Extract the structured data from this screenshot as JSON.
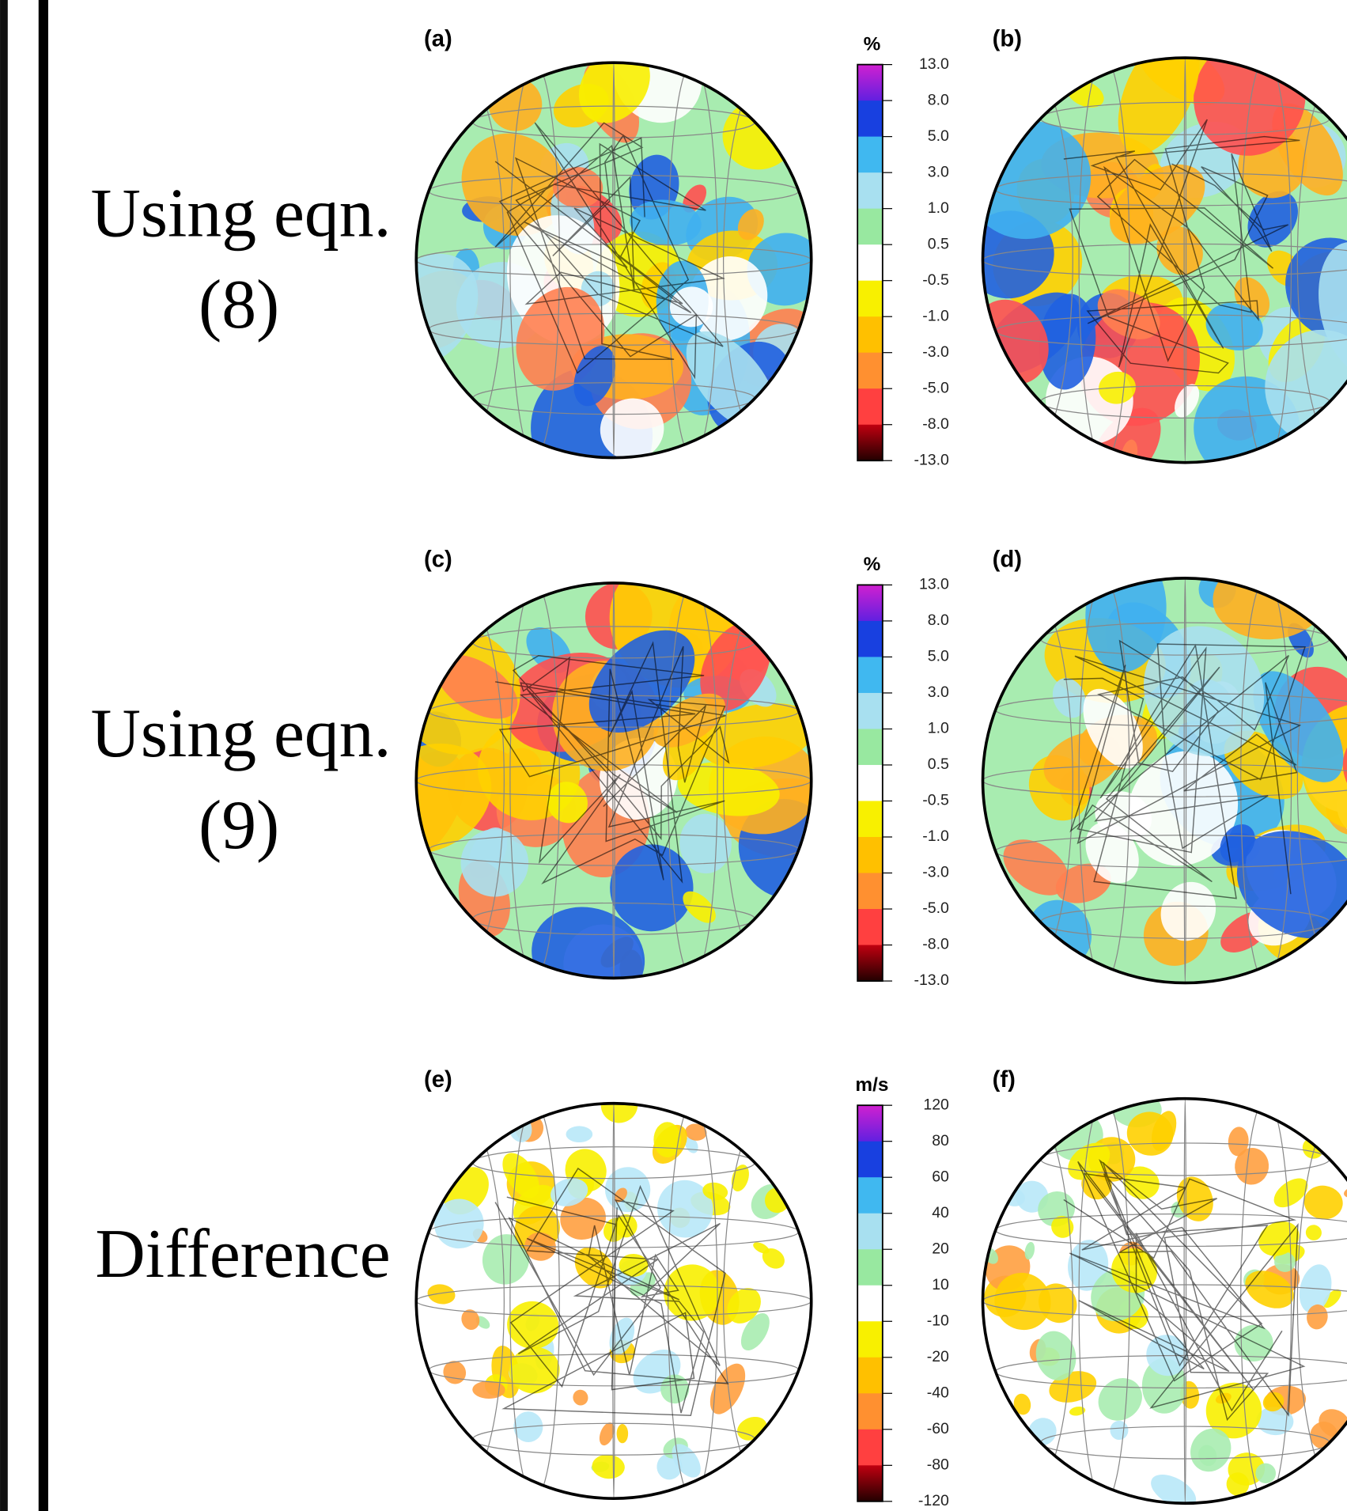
{
  "rows": [
    {
      "label": [
        "Using eqn.",
        "(8)"
      ],
      "panels": [
        "(a)",
        "(b)"
      ],
      "colorbar": {
        "unit": "%",
        "ticks": [
          "13.0",
          "8.0",
          "5.0",
          "3.0",
          "1.0",
          "0.5",
          "-0.5",
          "-1.0",
          "-3.0",
          "-5.0",
          "-8.0",
          "-13.0"
        ]
      }
    },
    {
      "label": [
        "Using eqn.",
        "(9)"
      ],
      "panels": [
        "(c)",
        "(d)"
      ],
      "colorbar": {
        "unit": "%",
        "ticks": [
          "13.0",
          "8.0",
          "5.0",
          "3.0",
          "1.0",
          "0.5",
          "-0.5",
          "-1.0",
          "-3.0",
          "-5.0",
          "-8.0",
          "-13.0"
        ]
      }
    },
    {
      "label": [
        "Difference"
      ],
      "panels": [
        "(e)",
        "(f)"
      ],
      "colorbar": {
        "unit": "m/s",
        "ticks": [
          "120",
          "80",
          "60",
          "40",
          "20",
          "10",
          "-10",
          "-20",
          "-40",
          "-60",
          "-80",
          "-120"
        ]
      }
    }
  ]
}
